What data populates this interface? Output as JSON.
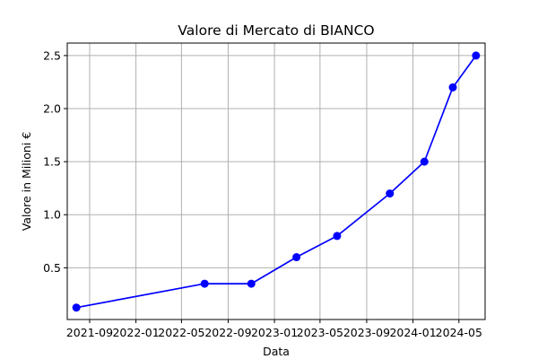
{
  "chart_data": {
    "type": "line",
    "title": "Valore di Mercato di BIANCO",
    "xlabel": "Data",
    "ylabel": "Valore in Milioni €",
    "x_ticks": [
      "2021-09",
      "2022-01",
      "2022-05",
      "2022-09",
      "2023-01",
      "2023-05",
      "2023-09",
      "2024-01",
      "2024-05"
    ],
    "y_ticks": [
      "0.5",
      "1.0",
      "1.5",
      "2.0",
      "2.5"
    ],
    "xlim": [
      "2021-07-04",
      "2024-07-09"
    ],
    "ylim": [
      0.0125,
      2.6175
    ],
    "grid": true,
    "series": [
      {
        "color": "#0000ff",
        "points": [
          {
            "x": "2021-07-28",
            "y": 0.125
          },
          {
            "x": "2022-07-01",
            "y": 0.35
          },
          {
            "x": "2022-11-01",
            "y": 0.35
          },
          {
            "x": "2023-02-28",
            "y": 0.6
          },
          {
            "x": "2023-06-15",
            "y": 0.8
          },
          {
            "x": "2023-11-01",
            "y": 1.2
          },
          {
            "x": "2024-01-31",
            "y": 1.5
          },
          {
            "x": "2024-04-15",
            "y": 2.2
          },
          {
            "x": "2024-06-15",
            "y": 2.5
          }
        ]
      }
    ]
  }
}
